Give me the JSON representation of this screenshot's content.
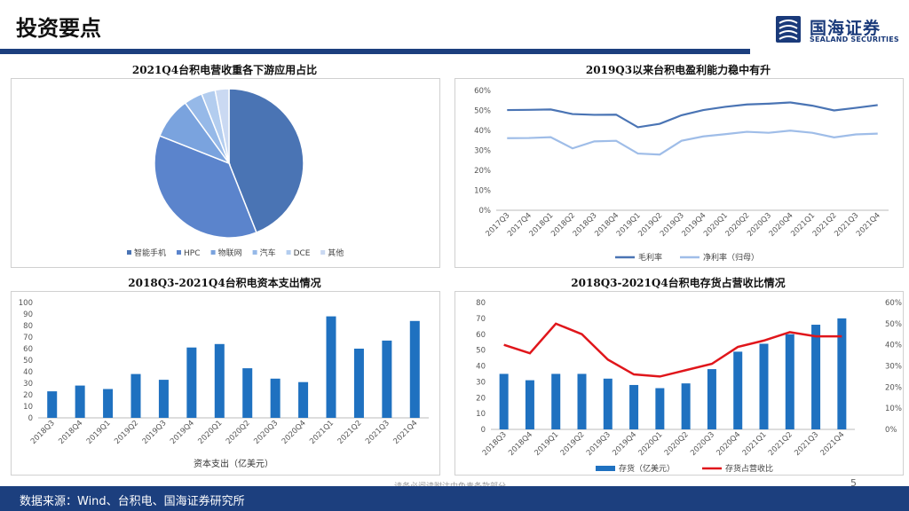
{
  "page": {
    "title": "投资要点",
    "source": "数据来源：Wind、台积电、国海证券研究所",
    "disclaimer": "请务必阅读附注中免责条款部分",
    "page_number": "5"
  },
  "logo": {
    "cn": "国海证券",
    "en": "SEALAND SECURITIES",
    "color": "#1a3a7a"
  },
  "chart_data": [
    {
      "type": "pie",
      "title": "2021Q4台积电营收重各下游应用占比",
      "categories": [
        "智能手机",
        "HPC",
        "物联网",
        "汽车",
        "DCE",
        "其他"
      ],
      "values": [
        44,
        37,
        9,
        4,
        3,
        3
      ],
      "colors": [
        "#4a74b4",
        "#5b84cc",
        "#7aa3de",
        "#96b9e8",
        "#b3cdef",
        "#cad9f2"
      ],
      "legend": "bottom"
    },
    {
      "type": "line",
      "title": "2019Q3以来台积电盈利能力稳中有升",
      "categories": [
        "2017Q3",
        "2017Q4",
        "2018Q1",
        "2018Q2",
        "2018Q3",
        "2018Q4",
        "2019Q1",
        "2019Q2",
        "2019Q3",
        "2019Q4",
        "2020Q1",
        "2020Q2",
        "2020Q3",
        "2020Q4",
        "2021Q1",
        "2021Q2",
        "2021Q3",
        "2021Q4"
      ],
      "series": [
        {
          "name": "毛利率",
          "values": [
            50.2,
            50.3,
            50.5,
            48.2,
            47.8,
            47.9,
            41.6,
            43.3,
            47.6,
            50.2,
            51.8,
            53.0,
            53.4,
            54.0,
            52.4,
            50.0,
            51.3,
            52.7
          ],
          "color": "#4a74b4"
        },
        {
          "name": "净利率（归母）",
          "values": [
            36.1,
            36.2,
            36.6,
            31.0,
            34.5,
            34.8,
            28.4,
            27.9,
            34.8,
            37.0,
            38.1,
            39.3,
            38.8,
            39.9,
            38.8,
            36.5,
            38.0,
            38.4
          ],
          "color": "#9fbde8"
        }
      ],
      "ylim": [
        0,
        60
      ],
      "yticks": [
        "0%",
        "10%",
        "20%",
        "30%",
        "40%",
        "50%",
        "60%"
      ],
      "legend": "bottom"
    },
    {
      "type": "bar",
      "title": "2018Q3-2021Q4台积电资本支出情况",
      "categories": [
        "2018Q3",
        "2018Q4",
        "2019Q1",
        "2019Q2",
        "2019Q3",
        "2019Q4",
        "2020Q1",
        "2020Q2",
        "2020Q3",
        "2020Q4",
        "2021Q1",
        "2021Q2",
        "2021Q3",
        "2021Q4"
      ],
      "series": [
        {
          "name": "资本支出（亿美元）",
          "values": [
            23,
            28,
            25,
            38,
            33,
            61,
            64,
            43,
            34,
            31,
            88,
            60,
            67,
            84
          ],
          "color": "#1f71c0"
        }
      ],
      "ylim": [
        0,
        100
      ],
      "yticks": [
        "0",
        "10",
        "20",
        "30",
        "40",
        "50",
        "60",
        "70",
        "80",
        "90",
        "100"
      ],
      "xlabel": "资本支出（亿美元）"
    },
    {
      "type": "bar+line",
      "title": "2018Q3-2021Q4台积电存货占营收比情况",
      "categories": [
        "2018Q3",
        "2018Q4",
        "2019Q1",
        "2019Q2",
        "2019Q3",
        "2019Q4",
        "2020Q1",
        "2020Q2",
        "2020Q3",
        "2020Q4",
        "2021Q1",
        "2021Q2",
        "2021Q3",
        "2021Q4"
      ],
      "series": [
        {
          "name": "存货（亿美元）",
          "type": "bar",
          "axis": "left",
          "values": [
            35,
            31,
            35,
            35,
            32,
            28,
            26,
            29,
            38,
            49,
            54,
            60,
            66,
            70
          ],
          "color": "#1f71c0"
        },
        {
          "name": "存货占营收比",
          "type": "line",
          "axis": "right",
          "values": [
            40,
            36,
            50,
            45,
            33,
            26,
            25,
            28,
            31,
            39,
            42,
            46,
            44,
            44
          ],
          "color": "#e0161b"
        }
      ],
      "ylim": [
        0,
        80
      ],
      "yticks": [
        "0",
        "10",
        "20",
        "30",
        "40",
        "50",
        "60",
        "70",
        "80"
      ],
      "y2lim": [
        0,
        60
      ],
      "y2ticks": [
        "0%",
        "10%",
        "20%",
        "30%",
        "40%",
        "50%",
        "60%"
      ],
      "legend": "bottom"
    }
  ]
}
